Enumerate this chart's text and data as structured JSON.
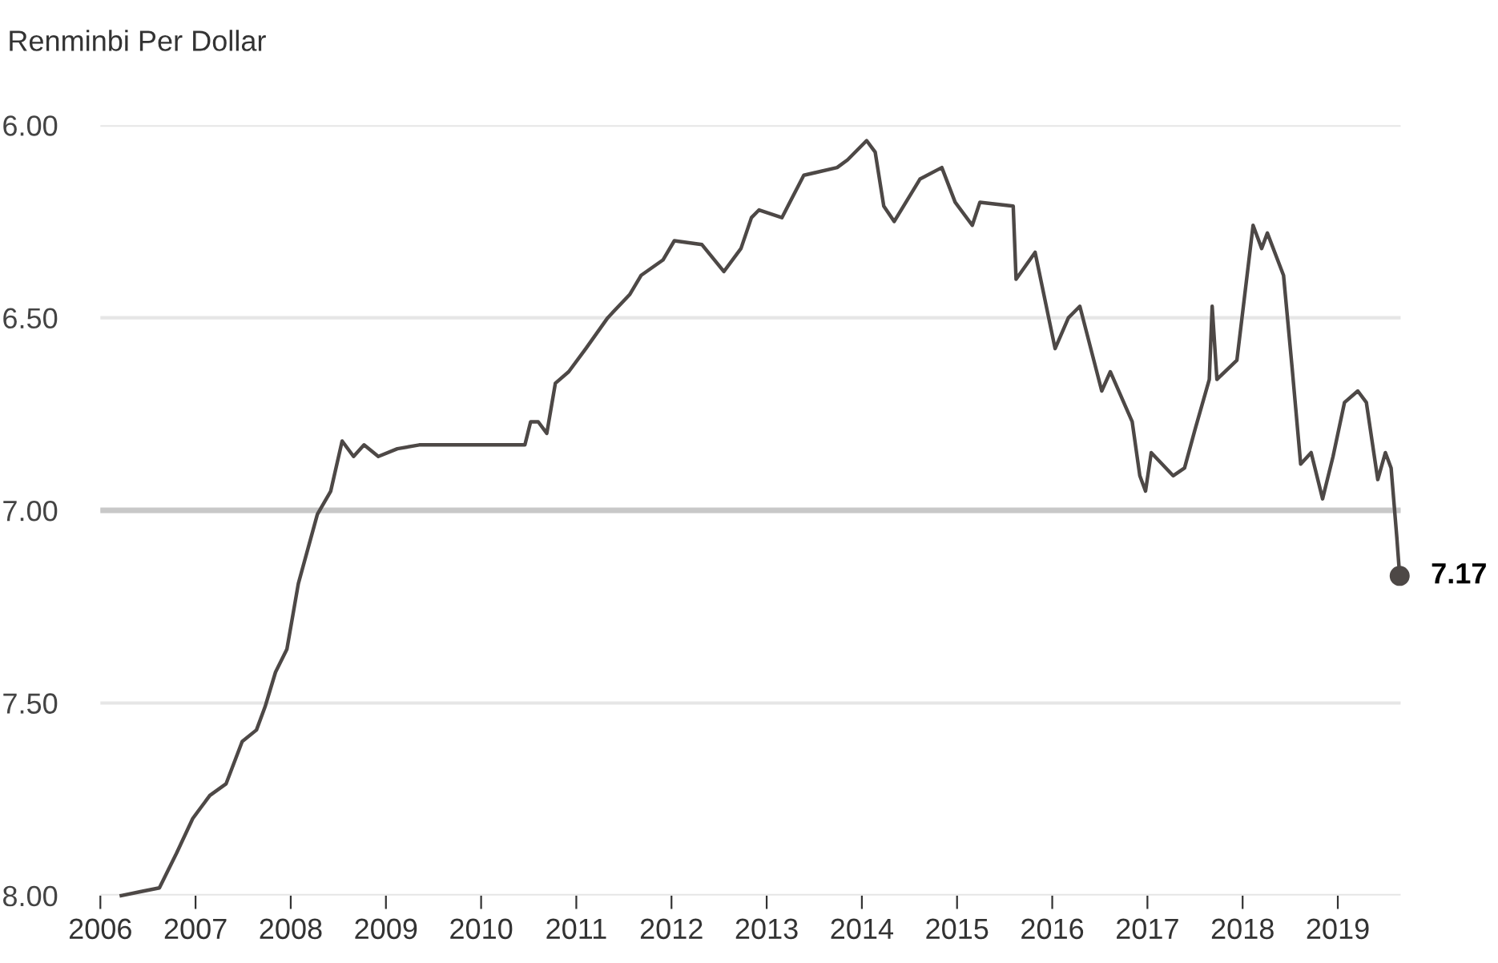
{
  "chart_data": {
    "type": "line",
    "title": "Renminbi Per Dollar",
    "x": [
      2006.22,
      2006.42,
      2006.62,
      2006.8,
      2006.97,
      2007.15,
      2007.32,
      2007.49,
      2007.64,
      2007.73,
      2007.84,
      2007.96,
      2008.08,
      2008.28,
      2008.42,
      2008.54,
      2008.66,
      2008.77,
      2008.92,
      2009.12,
      2009.35,
      2009.59,
      2010.46,
      2010.52,
      2010.6,
      2010.69,
      2010.78,
      2010.92,
      2011.1,
      2011.33,
      2011.56,
      2011.68,
      2011.91,
      2012.03,
      2012.32,
      2012.55,
      2012.73,
      2012.84,
      2012.92,
      2013.16,
      2013.39,
      2013.74,
      2013.85,
      2014.05,
      2014.14,
      2014.23,
      2014.34,
      2014.61,
      2014.84,
      2014.98,
      2015.16,
      2015.24,
      2015.59,
      2015.62,
      2015.82,
      2016.03,
      2016.17,
      2016.29,
      2016.52,
      2016.61,
      2016.84,
      2016.92,
      2016.98,
      2017.04,
      2017.27,
      2017.39,
      2017.5,
      2017.65,
      2017.68,
      2017.73,
      2017.94,
      2018.11,
      2018.2,
      2018.26,
      2018.43,
      2018.52,
      2018.61,
      2018.72,
      2018.84,
      2018.95,
      2019.07,
      2019.21,
      2019.3,
      2019.42,
      2019.5,
      2019.56,
      2019.62,
      2019.65
    ],
    "series": [
      {
        "color": "#4d4846",
        "values": [
          8.0,
          7.99,
          7.98,
          7.89,
          7.8,
          7.74,
          7.71,
          7.6,
          7.57,
          7.51,
          7.42,
          7.36,
          7.19,
          7.01,
          6.95,
          6.82,
          6.86,
          6.83,
          6.86,
          6.84,
          6.83,
          6.83,
          6.83,
          6.77,
          6.77,
          6.8,
          6.67,
          6.64,
          6.58,
          6.5,
          6.44,
          6.39,
          6.35,
          6.3,
          6.31,
          6.38,
          6.32,
          6.24,
          6.22,
          6.24,
          6.13,
          6.11,
          6.09,
          6.04,
          6.07,
          6.21,
          6.25,
          6.14,
          6.11,
          6.2,
          6.26,
          6.2,
          6.21,
          6.4,
          6.33,
          6.58,
          6.5,
          6.47,
          6.69,
          6.64,
          6.77,
          6.91,
          6.95,
          6.85,
          6.91,
          6.89,
          6.79,
          6.66,
          6.47,
          6.66,
          6.61,
          6.26,
          6.32,
          6.28,
          6.39,
          6.63,
          6.88,
          6.85,
          6.97,
          6.86,
          6.72,
          6.69,
          6.72,
          6.92,
          6.85,
          6.89,
          7.07,
          7.17
        ]
      }
    ],
    "xlim": [
      2006,
      2019.66
    ],
    "xticks": [
      2006,
      2007,
      2008,
      2009,
      2010,
      2011,
      2012,
      2013,
      2014,
      2015,
      2016,
      2017,
      2018,
      2019
    ],
    "ylim": [
      8,
      6
    ],
    "yticks": [
      {
        "value": 6,
        "label": "6.00"
      },
      {
        "value": 6.5,
        "label": "6.50"
      },
      {
        "value": 7,
        "label": "7.00"
      },
      {
        "value": 7.5,
        "label": "7.50"
      },
      {
        "value": 8,
        "label": "8.00"
      }
    ],
    "grid": "y",
    "line_style": "solid",
    "marker": "none",
    "ref_lines": [
      {
        "axis": "y",
        "value": 7,
        "color": "#c8c8c8"
      }
    ],
    "annotations": [
      {
        "text": "7.17",
        "x": 2019.65,
        "y": 7.17
      }
    ]
  }
}
